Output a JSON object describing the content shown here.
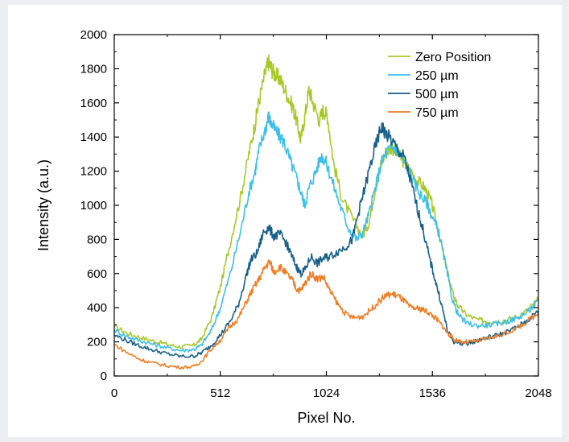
{
  "chart_data": {
    "type": "line",
    "title": "",
    "xlabel": "Pixel No.",
    "ylabel": "Intensity (a.u.)",
    "xlim": [
      0,
      2048
    ],
    "ylim": [
      0,
      2000
    ],
    "xticks": [
      0,
      512,
      1024,
      1536,
      2048
    ],
    "yticks": [
      0,
      200,
      400,
      600,
      800,
      1000,
      1200,
      1400,
      1600,
      1800,
      2000
    ],
    "grid": false,
    "legend_position": "top-right",
    "series": [
      {
        "name": "Zero Position",
        "color": "#a8c82a",
        "points": [
          [
            0,
            290
          ],
          [
            64,
            250
          ],
          [
            128,
            225
          ],
          [
            192,
            205
          ],
          [
            256,
            185
          ],
          [
            320,
            170
          ],
          [
            384,
            180
          ],
          [
            420,
            215
          ],
          [
            470,
            340
          ],
          [
            512,
            520
          ],
          [
            560,
            780
          ],
          [
            610,
            1050
          ],
          [
            650,
            1300
          ],
          [
            680,
            1480
          ],
          [
            700,
            1620
          ],
          [
            730,
            1780
          ],
          [
            745,
            1840
          ],
          [
            760,
            1800
          ],
          [
            780,
            1760
          ],
          [
            800,
            1740
          ],
          [
            830,
            1660
          ],
          [
            860,
            1580
          ],
          [
            880,
            1500
          ],
          [
            900,
            1380
          ],
          [
            920,
            1520
          ],
          [
            940,
            1680
          ],
          [
            960,
            1600
          ],
          [
            990,
            1500
          ],
          [
            1010,
            1560
          ],
          [
            1030,
            1520
          ],
          [
            1060,
            1240
          ],
          [
            1100,
            1040
          ],
          [
            1150,
            920
          ],
          [
            1200,
            820
          ],
          [
            1230,
            900
          ],
          [
            1260,
            1100
          ],
          [
            1290,
            1250
          ],
          [
            1310,
            1310
          ],
          [
            1340,
            1340
          ],
          [
            1370,
            1300
          ],
          [
            1400,
            1250
          ],
          [
            1430,
            1200
          ],
          [
            1460,
            1150
          ],
          [
            1500,
            1100
          ],
          [
            1530,
            1020
          ],
          [
            1560,
            880
          ],
          [
            1600,
            650
          ],
          [
            1630,
            500
          ],
          [
            1660,
            410
          ],
          [
            1700,
            360
          ],
          [
            1750,
            330
          ],
          [
            1800,
            320
          ],
          [
            1850,
            320
          ],
          [
            1900,
            330
          ],
          [
            1950,
            350
          ],
          [
            2000,
            390
          ],
          [
            2048,
            450
          ]
        ]
      },
      {
        "name": "250 µm",
        "color": "#3cbfe8",
        "points": [
          [
            0,
            270
          ],
          [
            64,
            230
          ],
          [
            128,
            205
          ],
          [
            192,
            185
          ],
          [
            256,
            165
          ],
          [
            320,
            150
          ],
          [
            384,
            155
          ],
          [
            420,
            180
          ],
          [
            470,
            270
          ],
          [
            512,
            400
          ],
          [
            560,
            600
          ],
          [
            610,
            850
          ],
          [
            650,
            1080
          ],
          [
            680,
            1200
          ],
          [
            700,
            1330
          ],
          [
            730,
            1450
          ],
          [
            745,
            1520
          ],
          [
            760,
            1470
          ],
          [
            790,
            1420
          ],
          [
            820,
            1370
          ],
          [
            850,
            1260
          ],
          [
            880,
            1160
          ],
          [
            900,
            1080
          ],
          [
            920,
            1000
          ],
          [
            940,
            1100
          ],
          [
            970,
            1190
          ],
          [
            1000,
            1290
          ],
          [
            1020,
            1260
          ],
          [
            1050,
            1150
          ],
          [
            1090,
            1000
          ],
          [
            1130,
            870
          ],
          [
            1170,
            800
          ],
          [
            1200,
            840
          ],
          [
            1230,
            950
          ],
          [
            1260,
            1100
          ],
          [
            1290,
            1250
          ],
          [
            1320,
            1320
          ],
          [
            1350,
            1340
          ],
          [
            1380,
            1300
          ],
          [
            1410,
            1230
          ],
          [
            1440,
            1150
          ],
          [
            1480,
            1060
          ],
          [
            1510,
            1010
          ],
          [
            1540,
            920
          ],
          [
            1570,
            830
          ],
          [
            1600,
            650
          ],
          [
            1630,
            460
          ],
          [
            1660,
            360
          ],
          [
            1700,
            310
          ],
          [
            1750,
            295
          ],
          [
            1800,
            298
          ],
          [
            1850,
            305
          ],
          [
            1900,
            320
          ],
          [
            1950,
            340
          ],
          [
            2000,
            380
          ],
          [
            2048,
            440
          ]
        ]
      },
      {
        "name": "500 µm",
        "color": "#17608a",
        "points": [
          [
            0,
            240
          ],
          [
            64,
            205
          ],
          [
            128,
            175
          ],
          [
            192,
            150
          ],
          [
            256,
            130
          ],
          [
            320,
            115
          ],
          [
            384,
            115
          ],
          [
            420,
            135
          ],
          [
            470,
            180
          ],
          [
            512,
            240
          ],
          [
            560,
            320
          ],
          [
            600,
            420
          ],
          [
            640,
            600
          ],
          [
            660,
            680
          ],
          [
            690,
            720
          ],
          [
            720,
            840
          ],
          [
            745,
            870
          ],
          [
            770,
            820
          ],
          [
            800,
            830
          ],
          [
            830,
            780
          ],
          [
            850,
            720
          ],
          [
            880,
            640
          ],
          [
            900,
            600
          ],
          [
            920,
            620
          ],
          [
            950,
            700
          ],
          [
            980,
            660
          ],
          [
            1010,
            690
          ],
          [
            1040,
            700
          ],
          [
            1080,
            730
          ],
          [
            1120,
            760
          ],
          [
            1150,
            800
          ],
          [
            1180,
            960
          ],
          [
            1210,
            1100
          ],
          [
            1240,
            1250
          ],
          [
            1270,
            1380
          ],
          [
            1290,
            1460
          ],
          [
            1310,
            1420
          ],
          [
            1340,
            1380
          ],
          [
            1370,
            1320
          ],
          [
            1400,
            1280
          ],
          [
            1430,
            1150
          ],
          [
            1460,
            1000
          ],
          [
            1490,
            860
          ],
          [
            1520,
            700
          ],
          [
            1550,
            560
          ],
          [
            1580,
            420
          ],
          [
            1610,
            260
          ],
          [
            1640,
            200
          ],
          [
            1680,
            190
          ],
          [
            1720,
            195
          ],
          [
            1760,
            210
          ],
          [
            1800,
            225
          ],
          [
            1850,
            240
          ],
          [
            1900,
            260
          ],
          [
            1950,
            290
          ],
          [
            2000,
            330
          ],
          [
            2048,
            380
          ]
        ]
      },
      {
        "name": "750 µm",
        "color": "#f07d26",
        "points": [
          [
            0,
            185
          ],
          [
            64,
            135
          ],
          [
            128,
            95
          ],
          [
            192,
            75
          ],
          [
            256,
            60
          ],
          [
            320,
            50
          ],
          [
            384,
            55
          ],
          [
            420,
            85
          ],
          [
            470,
            160
          ],
          [
            512,
            210
          ],
          [
            560,
            290
          ],
          [
            600,
            340
          ],
          [
            640,
            440
          ],
          [
            670,
            510
          ],
          [
            700,
            570
          ],
          [
            730,
            640
          ],
          [
            750,
            670
          ],
          [
            770,
            610
          ],
          [
            800,
            640
          ],
          [
            830,
            600
          ],
          [
            860,
            560
          ],
          [
            880,
            510
          ],
          [
            900,
            500
          ],
          [
            920,
            540
          ],
          [
            950,
            600
          ],
          [
            980,
            570
          ],
          [
            1010,
            580
          ],
          [
            1040,
            500
          ],
          [
            1080,
            420
          ],
          [
            1120,
            360
          ],
          [
            1160,
            340
          ],
          [
            1200,
            350
          ],
          [
            1240,
            390
          ],
          [
            1280,
            440
          ],
          [
            1310,
            470
          ],
          [
            1340,
            480
          ],
          [
            1370,
            470
          ],
          [
            1400,
            440
          ],
          [
            1430,
            400
          ],
          [
            1460,
            395
          ],
          [
            1490,
            390
          ],
          [
            1520,
            370
          ],
          [
            1550,
            340
          ],
          [
            1580,
            300
          ],
          [
            1610,
            250
          ],
          [
            1640,
            215
          ],
          [
            1680,
            200
          ],
          [
            1720,
            200
          ],
          [
            1760,
            205
          ],
          [
            1800,
            220
          ],
          [
            1850,
            235
          ],
          [
            1900,
            255
          ],
          [
            1950,
            285
          ],
          [
            2000,
            325
          ],
          [
            2048,
            370
          ]
        ]
      }
    ]
  }
}
